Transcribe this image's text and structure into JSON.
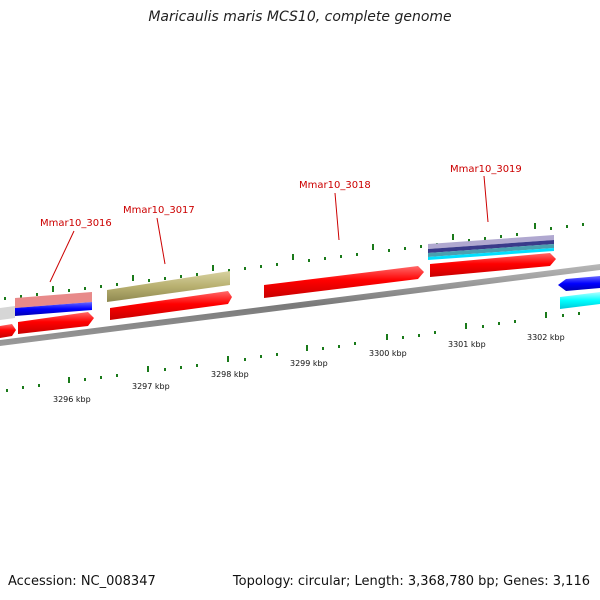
{
  "title": "Maricaulis maris MCS10, complete genome",
  "footer": {
    "accession": "Accession: NC_008347",
    "topology": "Topology: circular; Length: 3,368,780 bp; Genes: 3,116"
  },
  "genes": [
    {
      "label": "Mmar10_3016"
    },
    {
      "label": "Mmar10_3017"
    },
    {
      "label": "Mmar10_3018"
    },
    {
      "label": "Mmar10_3019"
    }
  ],
  "scale_ticks": [
    {
      "label": "3296 kbp"
    },
    {
      "label": "3297 kbp"
    },
    {
      "label": "3298 kbp"
    },
    {
      "label": "3299 kbp"
    },
    {
      "label": "3300 kbp"
    },
    {
      "label": "3301 kbp"
    },
    {
      "label": "3302 kbp"
    }
  ],
  "colors": {
    "gene_label": "#cc0000",
    "gene_red": "#ff0000",
    "gene_olive": "#b8b070",
    "gene_blue": "#0000ff",
    "gene_cyan": "#00ffff",
    "gene_pink": "#e88a8a",
    "gene_lavender": "#b0a8d0",
    "gene_gray": "#cccccc",
    "backbone": "#8a8a8a",
    "tick": "#1a7a1a"
  }
}
